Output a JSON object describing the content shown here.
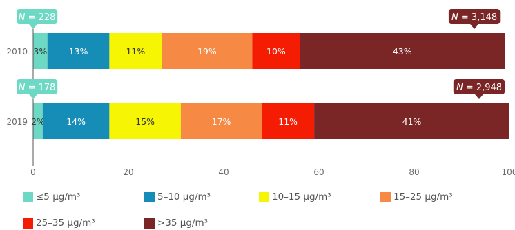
{
  "chart_data": {
    "type": "bar",
    "orientation": "horizontal",
    "stacked": true,
    "categories": [
      "2010",
      "2019"
    ],
    "series": [
      {
        "name": "≤5 μg/m³",
        "color": "#6dd8c4",
        "values": [
          3,
          2
        ],
        "labels": [
          "3%",
          "2%"
        ],
        "label_color": "#333333"
      },
      {
        "name": "5–10 μg/m³",
        "color": "#168db6",
        "values": [
          13,
          14
        ],
        "labels": [
          "13%",
          "14%"
        ],
        "label_color": "#ffffff"
      },
      {
        "name": "10–15 μg/m³",
        "color": "#f5f504",
        "values": [
          11,
          15
        ],
        "labels": [
          "11%",
          "15%"
        ],
        "label_color": "#333333"
      },
      {
        "name": "15–25 μg/m³",
        "color": "#f68a45",
        "values": [
          19,
          17
        ],
        "labels": [
          "19%",
          "17%"
        ],
        "label_color": "#ffffff"
      },
      {
        "name": "25–35 μg/m³",
        "color": "#f51c04",
        "values": [
          10,
          11
        ],
        "labels": [
          "10%",
          "11%"
        ],
        "label_color": "#ffffff"
      },
      {
        "name": ">35 μg/m³",
        "color": "#7a2626",
        "values": [
          43,
          41
        ],
        "labels": [
          "43%",
          "41%"
        ],
        "label_color": "#ffffff"
      }
    ],
    "annotations": [
      {
        "row": "2010",
        "series": "≤5 μg/m³",
        "n_symbol": "N",
        "text": " = 228",
        "color": "#6dd8c4"
      },
      {
        "row": "2010",
        "series": ">35 μg/m³",
        "n_symbol": "N",
        "text": " = 3,148",
        "color": "#7a2626"
      },
      {
        "row": "2019",
        "series": "≤5 μg/m³",
        "n_symbol": "N",
        "text": " = 178",
        "color": "#6dd8c4"
      },
      {
        "row": "2019",
        "series": ">35 μg/m³",
        "n_symbol": "N",
        "text": " = 2,948",
        "color": "#7a2626"
      }
    ],
    "xlim": [
      0,
      100
    ],
    "xticks": [
      0,
      20,
      40,
      60,
      80,
      100
    ],
    "xlabel": "",
    "ylabel": "",
    "title": "",
    "grid": false,
    "legend_position": "bottom"
  }
}
